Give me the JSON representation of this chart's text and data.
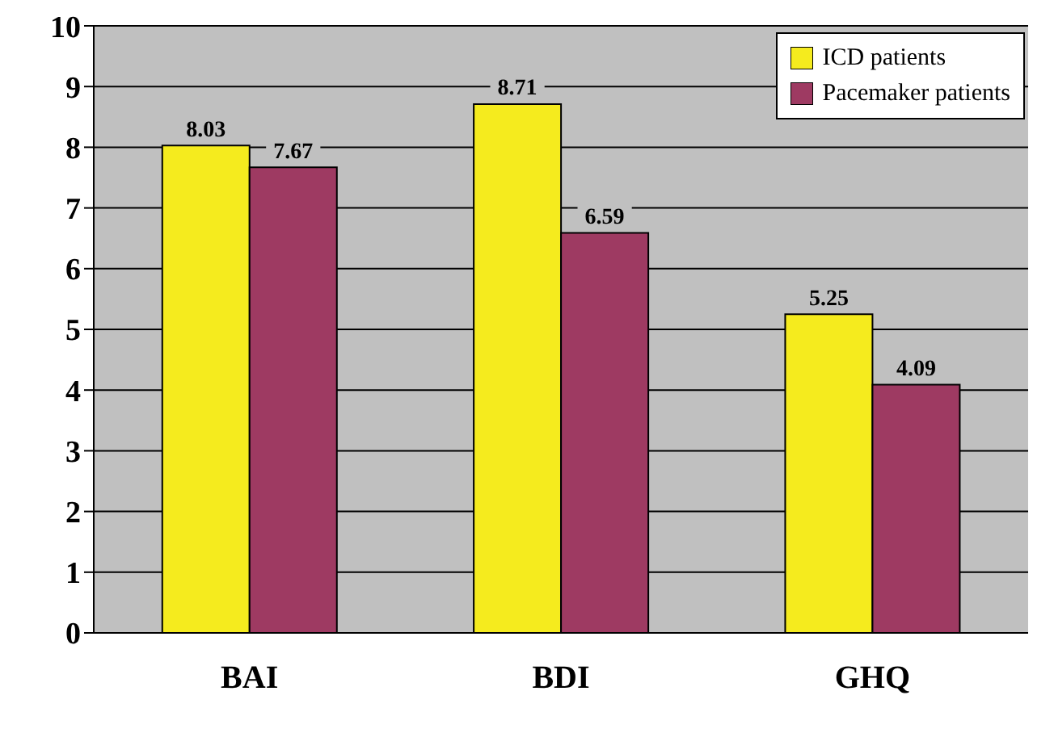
{
  "chart_data": {
    "type": "bar",
    "categories": [
      "BAI",
      "BDI",
      "GHQ"
    ],
    "series": [
      {
        "name": "ICD patients",
        "color": "#f5eb1e",
        "values": [
          8.03,
          8.71,
          5.25
        ]
      },
      {
        "name": "Pacemaker patients",
        "color": "#9e3a62",
        "values": [
          7.67,
          6.59,
          4.09
        ]
      }
    ],
    "ylim": [
      0,
      10
    ],
    "yticks": [
      0,
      1,
      2,
      3,
      4,
      5,
      6,
      7,
      8,
      9,
      10
    ],
    "grid": "y",
    "legend": "top right",
    "data_labels": true
  }
}
